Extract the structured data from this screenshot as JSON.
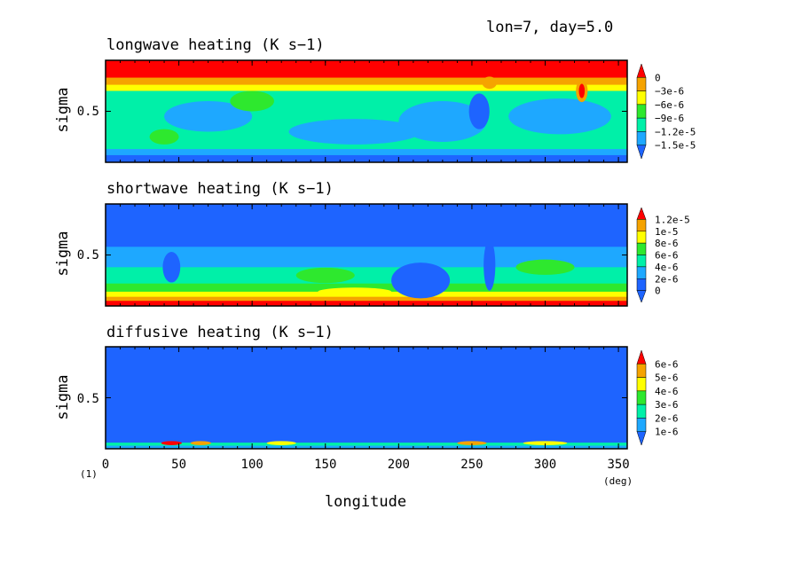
{
  "header": {
    "run_label": "lon=7, day=5.0"
  },
  "footnote": {
    "index_label": "(1)",
    "x_unit": "(deg)"
  },
  "shared_axes": {
    "xlabel": "longitude",
    "xlim": [
      0,
      356
    ],
    "xticks": [
      0,
      50,
      100,
      150,
      200,
      250,
      300,
      350
    ],
    "ylabel": "sigma",
    "ytick": "0.5"
  },
  "colors": {
    "red": "#ff0000",
    "orange": "#f5a300",
    "yellow": "#ffff00",
    "green": "#2ee82e",
    "teal": "#00f0a8",
    "lightblue": "#1ea8ff",
    "blue": "#1e64ff",
    "darkblue": "#1e3cff"
  },
  "chart_data": [
    {
      "type": "heatmap",
      "title": "longwave heating (K s−1)",
      "xlabel": "",
      "ylabel": "sigma",
      "colorbar_labels": [
        "0",
        "−3e-6",
        "−6e-6",
        "−9e-6",
        "−1.2e-5",
        "−1.5e-5"
      ],
      "levels": [
        0,
        -3e-06,
        -6e-06,
        -9e-06,
        -1.2e-05,
        -1.5e-05
      ],
      "bands": [
        {
          "sigma_top": 0.0,
          "sigma_bottom": 0.17,
          "color": "red"
        },
        {
          "sigma_top": 0.17,
          "sigma_bottom": 0.24,
          "color": "orange"
        },
        {
          "sigma_top": 0.24,
          "sigma_bottom": 0.3,
          "color": "yellow"
        },
        {
          "sigma_top": 0.3,
          "sigma_bottom": 0.87,
          "color": "teal"
        },
        {
          "sigma_top": 0.87,
          "sigma_bottom": 0.93,
          "color": "lightblue"
        },
        {
          "sigma_top": 0.93,
          "sigma_bottom": 1.0,
          "color": "blue"
        }
      ],
      "patches": [
        {
          "lon": 70,
          "sigma": 0.55,
          "w": 60,
          "h": 0.3,
          "color": "lightblue"
        },
        {
          "lon": 170,
          "sigma": 0.7,
          "w": 90,
          "h": 0.25,
          "color": "lightblue"
        },
        {
          "lon": 230,
          "sigma": 0.6,
          "w": 60,
          "h": 0.4,
          "color": "lightblue"
        },
        {
          "lon": 310,
          "sigma": 0.55,
          "w": 70,
          "h": 0.35,
          "color": "lightblue"
        },
        {
          "lon": 255,
          "sigma": 0.5,
          "w": 14,
          "h": 0.35,
          "color": "blue"
        },
        {
          "lon": 100,
          "sigma": 0.4,
          "w": 30,
          "h": 0.2,
          "color": "green"
        },
        {
          "lon": 40,
          "sigma": 0.75,
          "w": 20,
          "h": 0.15,
          "color": "green"
        },
        {
          "lon": 325,
          "sigma": 0.3,
          "w": 8,
          "h": 0.22,
          "color": "orange"
        },
        {
          "lon": 325,
          "sigma": 0.3,
          "w": 4,
          "h": 0.14,
          "color": "red"
        },
        {
          "lon": 262,
          "sigma": 0.22,
          "w": 10,
          "h": 0.12,
          "color": "orange"
        }
      ]
    },
    {
      "type": "heatmap",
      "title": "shortwave heating (K s−1)",
      "xlabel": "",
      "ylabel": "sigma",
      "colorbar_labels": [
        "1.2e-5",
        "1e-5",
        "8e-6",
        "6e-6",
        "4e-6",
        "2e-6",
        "0"
      ],
      "levels": [
        1.2e-05,
        1e-05,
        8e-06,
        6e-06,
        4e-06,
        2e-06,
        0
      ],
      "bands": [
        {
          "sigma_top": 0.0,
          "sigma_bottom": 0.42,
          "color": "blue"
        },
        {
          "sigma_top": 0.42,
          "sigma_bottom": 0.62,
          "color": "lightblue"
        },
        {
          "sigma_top": 0.62,
          "sigma_bottom": 0.78,
          "color": "teal"
        },
        {
          "sigma_top": 0.78,
          "sigma_bottom": 0.86,
          "color": "green"
        },
        {
          "sigma_top": 0.86,
          "sigma_bottom": 0.91,
          "color": "yellow"
        },
        {
          "sigma_top": 0.91,
          "sigma_bottom": 0.95,
          "color": "orange"
        },
        {
          "sigma_top": 0.95,
          "sigma_bottom": 1.0,
          "color": "red"
        }
      ],
      "patches": [
        {
          "lon": 215,
          "sigma": 0.75,
          "w": 40,
          "h": 0.35,
          "color": "blue"
        },
        {
          "lon": 262,
          "sigma": 0.6,
          "w": 8,
          "h": 0.5,
          "color": "blue"
        },
        {
          "lon": 45,
          "sigma": 0.62,
          "w": 12,
          "h": 0.3,
          "color": "blue"
        },
        {
          "lon": 150,
          "sigma": 0.7,
          "w": 40,
          "h": 0.15,
          "color": "green"
        },
        {
          "lon": 300,
          "sigma": 0.62,
          "w": 40,
          "h": 0.15,
          "color": "green"
        },
        {
          "lon": 170,
          "sigma": 0.86,
          "w": 50,
          "h": 0.08,
          "color": "yellow"
        }
      ]
    },
    {
      "type": "heatmap",
      "title": "diffusive heating (K s−1)",
      "xlabel": "longitude",
      "ylabel": "sigma",
      "colorbar_labels": [
        "6e-6",
        "5e-6",
        "4e-6",
        "3e-6",
        "2e-6",
        "1e-6"
      ],
      "levels": [
        6e-06,
        5e-06,
        4e-06,
        3e-06,
        2e-06,
        1e-06
      ],
      "bands": [
        {
          "sigma_top": 0.0,
          "sigma_bottom": 0.94,
          "color": "blue"
        },
        {
          "sigma_top": 0.94,
          "sigma_bottom": 0.97,
          "color": "teal"
        },
        {
          "sigma_top": 0.97,
          "sigma_bottom": 1.0,
          "color": "lightblue"
        }
      ],
      "patches": [
        {
          "lon": 45,
          "sigma": 0.945,
          "w": 14,
          "h": 0.04,
          "color": "red"
        },
        {
          "lon": 65,
          "sigma": 0.945,
          "w": 14,
          "h": 0.04,
          "color": "orange"
        },
        {
          "lon": 120,
          "sigma": 0.945,
          "w": 20,
          "h": 0.04,
          "color": "yellow"
        },
        {
          "lon": 250,
          "sigma": 0.945,
          "w": 20,
          "h": 0.04,
          "color": "orange"
        },
        {
          "lon": 300,
          "sigma": 0.945,
          "w": 30,
          "h": 0.04,
          "color": "yellow"
        }
      ]
    }
  ]
}
